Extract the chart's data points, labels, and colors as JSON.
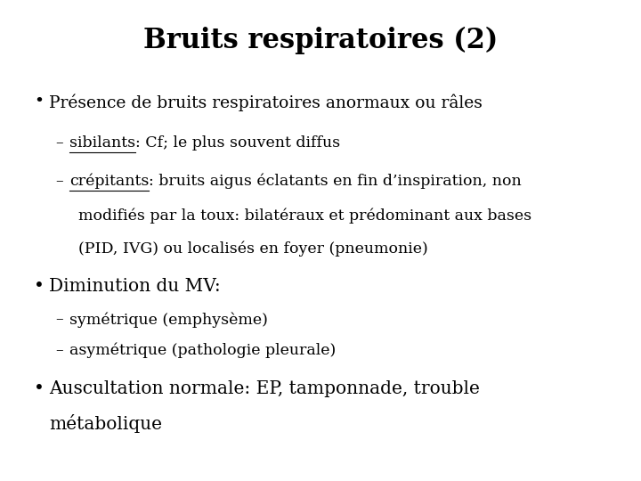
{
  "title": "Bruits respiratoires (2)",
  "background_color": "#ffffff",
  "text_color": "#000000",
  "title_fontsize": 22,
  "body_fontsize": 13.5,
  "sub_fontsize": 12.5,
  "bullet1": "Présence de bruits respiratoires anormaux ou râles",
  "sub1a_underline": "sibilants",
  "sub1a_rest": ": Cf; le plus souvent diffus",
  "sub1b_underline": "crépitants",
  "sub1b_rest": ": bruits aigus éclatants en fin d’inspiration, non",
  "sub1b_line2": "modifiés par la toux: bilatéraux et prédominant aux bases",
  "sub1b_line3": "(PID, IVG) ou localisés en foyer (pneumonie)",
  "bullet2": "Diminution du MV:",
  "sub2a": "symétrique (emphysème)",
  "sub2b": "asymétrique (pathologie pleurale)",
  "bullet3_line1": "Auscultation normale: EP, tamponnade, trouble",
  "bullet3_line2": "métabolique",
  "font_family": "DejaVu Serif"
}
